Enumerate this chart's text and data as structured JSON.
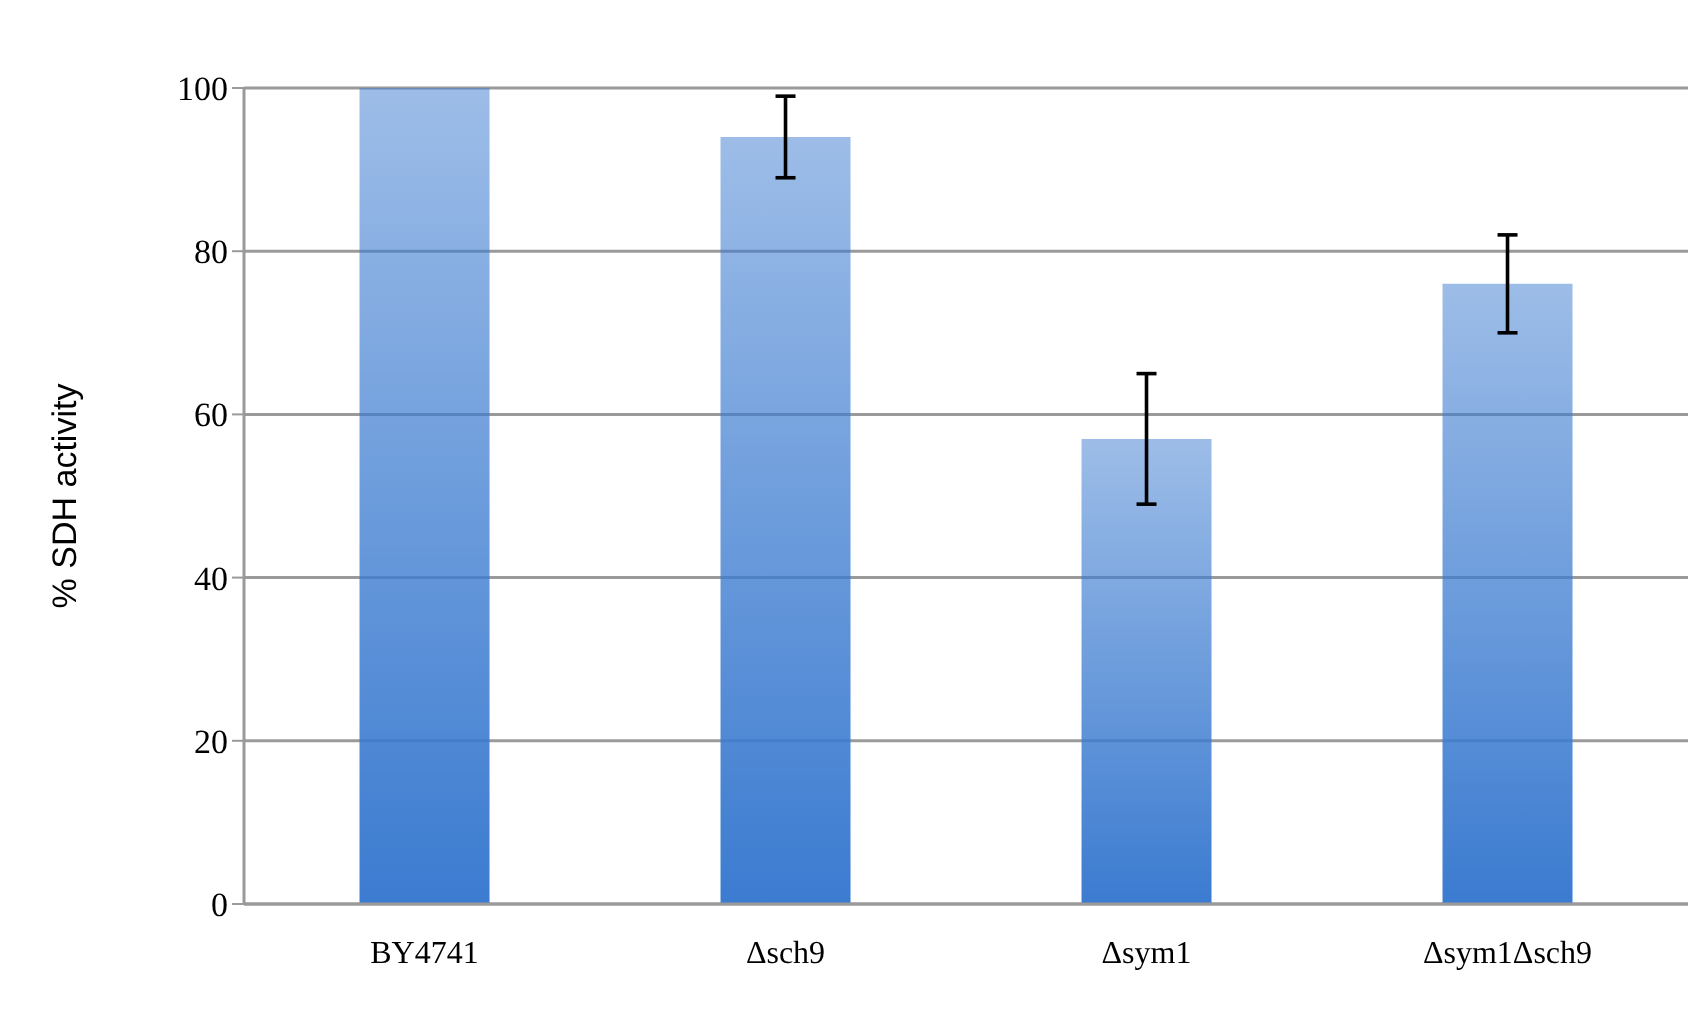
{
  "chart_data": {
    "type": "bar",
    "ylabel": "% SDH activity",
    "categories": [
      "BY4741",
      "Δsch9",
      "Δsym1",
      "Δsym1Δsch9"
    ],
    "values": [
      100,
      94,
      57,
      76
    ],
    "errors": [
      null,
      5,
      8,
      6
    ],
    "color": "#3b7bd0",
    "ylim": [
      0,
      100
    ],
    "yticks": [
      0,
      20,
      40,
      60,
      80,
      100
    ],
    "grid": "y"
  }
}
